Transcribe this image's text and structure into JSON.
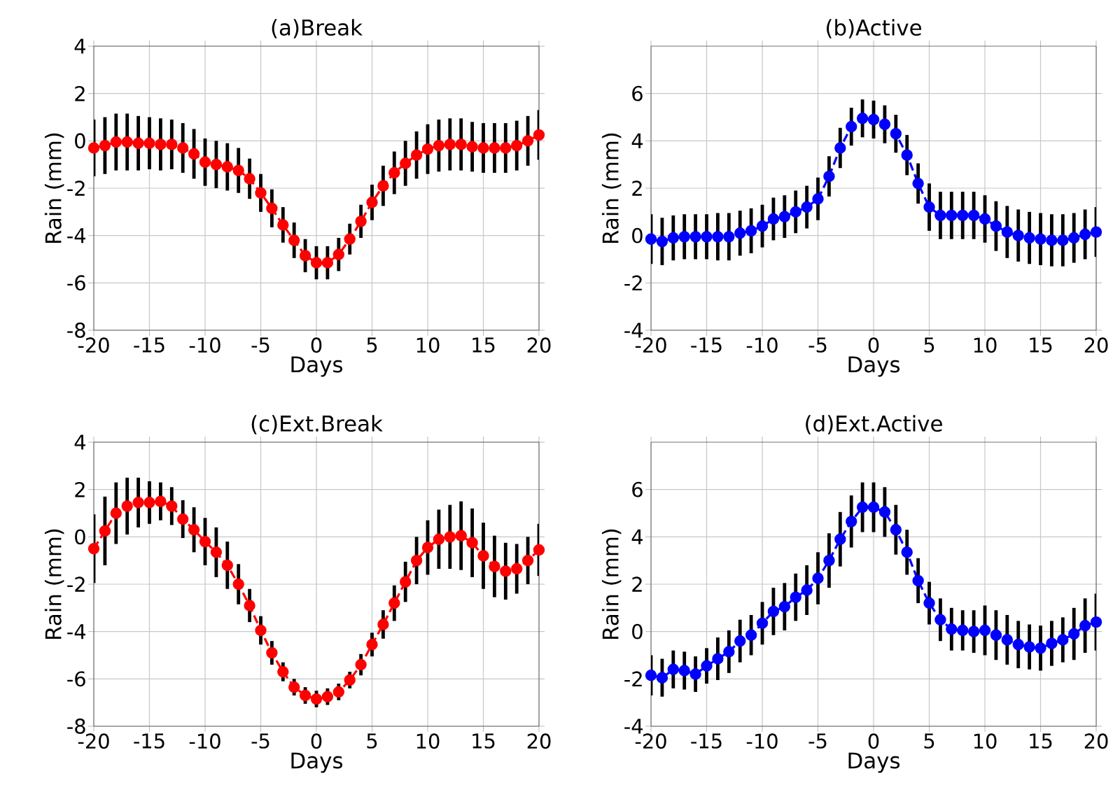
{
  "chart_data": [
    {
      "type": "line",
      "title": "(a)Break",
      "xlabel": "Days",
      "ylabel": "Rain (mm)",
      "grid": true,
      "marker": "circle",
      "line_style": "dashed",
      "x": [
        -20,
        -19,
        -18,
        -17,
        -16,
        -15,
        -14,
        -13,
        -12,
        -11,
        -10,
        -9,
        -8,
        -7,
        -6,
        -5,
        -4,
        -3,
        -2,
        -1,
        0,
        1,
        2,
        3,
        4,
        5,
        6,
        7,
        8,
        9,
        10,
        11,
        12,
        13,
        14,
        15,
        16,
        17,
        18,
        19,
        20
      ],
      "xlim": [
        -20,
        20
      ],
      "ylim": [
        -8,
        4
      ],
      "xticks": [
        -20,
        -15,
        -10,
        -5,
        0,
        5,
        10,
        15,
        20
      ],
      "yticks": [
        -8,
        -6,
        -4,
        -2,
        0,
        2,
        4
      ],
      "series": [
        {
          "color": "#ff0000",
          "values": [
            -0.3,
            -0.2,
            -0.05,
            -0.05,
            -0.1,
            -0.1,
            -0.15,
            -0.15,
            -0.3,
            -0.55,
            -0.9,
            -1.0,
            -1.1,
            -1.25,
            -1.6,
            -2.2,
            -2.85,
            -3.55,
            -4.2,
            -4.85,
            -5.15,
            -5.15,
            -4.8,
            -4.15,
            -3.4,
            -2.6,
            -1.9,
            -1.35,
            -0.95,
            -0.6,
            -0.35,
            -0.2,
            -0.15,
            -0.15,
            -0.25,
            -0.3,
            -0.3,
            -0.3,
            -0.2,
            0.0,
            0.25
          ],
          "errors": [
            1.2,
            1.2,
            1.2,
            1.2,
            1.15,
            1.1,
            1.1,
            1.05,
            1.05,
            1.05,
            1.0,
            1.0,
            1.0,
            0.95,
            0.85,
            0.8,
            0.8,
            0.75,
            0.75,
            0.7,
            0.7,
            0.7,
            0.7,
            0.65,
            0.7,
            0.75,
            0.85,
            0.9,
            0.95,
            1.0,
            1.05,
            1.1,
            1.1,
            1.1,
            1.05,
            1.05,
            1.05,
            1.05,
            1.05,
            1.05,
            1.05
          ]
        }
      ]
    },
    {
      "type": "line",
      "title": "(b)Active",
      "xlabel": "Days",
      "ylabel": "Rain (mm)",
      "grid": true,
      "marker": "circle",
      "line_style": "dashed",
      "x": [
        -20,
        -19,
        -18,
        -17,
        -16,
        -15,
        -14,
        -13,
        -12,
        -11,
        -10,
        -9,
        -8,
        -7,
        -6,
        -5,
        -4,
        -3,
        -2,
        -1,
        0,
        1,
        2,
        3,
        4,
        5,
        6,
        7,
        8,
        9,
        10,
        11,
        12,
        13,
        14,
        15,
        16,
        17,
        18,
        19,
        20
      ],
      "xlim": [
        -20,
        20
      ],
      "ylim": [
        -4,
        8
      ],
      "xticks": [
        -20,
        -15,
        -10,
        -5,
        0,
        5,
        10,
        15,
        20
      ],
      "yticks": [
        -4,
        -2,
        0,
        2,
        4,
        6
      ],
      "series": [
        {
          "color": "#0000ff",
          "values": [
            -0.15,
            -0.25,
            -0.1,
            -0.05,
            -0.05,
            -0.05,
            -0.05,
            -0.05,
            0.1,
            0.2,
            0.4,
            0.7,
            0.8,
            1.0,
            1.2,
            1.55,
            2.5,
            3.7,
            4.6,
            4.95,
            4.9,
            4.7,
            4.3,
            3.4,
            2.2,
            1.2,
            0.85,
            0.85,
            0.85,
            0.85,
            0.7,
            0.4,
            0.15,
            0.0,
            -0.1,
            -0.15,
            -0.2,
            -0.2,
            -0.1,
            0.05,
            0.15
          ],
          "errors": [
            1.05,
            1.0,
            0.95,
            0.95,
            0.95,
            0.95,
            1.0,
            1.0,
            0.95,
            0.95,
            0.9,
            0.9,
            0.9,
            0.9,
            0.9,
            0.9,
            0.85,
            0.85,
            0.8,
            0.8,
            0.8,
            0.8,
            0.8,
            0.85,
            0.85,
            1.0,
            1.0,
            1.0,
            1.0,
            1.0,
            1.0,
            1.05,
            1.1,
            1.1,
            1.1,
            1.1,
            1.1,
            1.1,
            1.05,
            1.05,
            1.05
          ]
        }
      ]
    },
    {
      "type": "line",
      "title": "(c)Ext.Break",
      "xlabel": "Days",
      "ylabel": "Rain (mm)",
      "grid": true,
      "marker": "circle",
      "line_style": "dashed",
      "x": [
        -20,
        -19,
        -18,
        -17,
        -16,
        -15,
        -14,
        -13,
        -12,
        -11,
        -10,
        -9,
        -8,
        -7,
        -6,
        -5,
        -4,
        -3,
        -2,
        -1,
        0,
        1,
        2,
        3,
        4,
        5,
        6,
        7,
        8,
        9,
        10,
        11,
        12,
        13,
        14,
        15,
        16,
        17,
        18,
        19,
        20
      ],
      "xlim": [
        -20,
        20
      ],
      "ylim": [
        -8,
        4
      ],
      "xticks": [
        -20,
        -15,
        -10,
        -5,
        0,
        5,
        10,
        15,
        20
      ],
      "yticks": [
        -8,
        -6,
        -4,
        -2,
        0,
        2,
        4
      ],
      "series": [
        {
          "color": "#ff0000",
          "values": [
            -0.5,
            0.25,
            1.0,
            1.3,
            1.45,
            1.45,
            1.5,
            1.3,
            0.75,
            0.3,
            -0.2,
            -0.65,
            -1.2,
            -2.0,
            -2.9,
            -3.95,
            -4.9,
            -5.7,
            -6.35,
            -6.7,
            -6.85,
            -6.75,
            -6.55,
            -6.05,
            -5.4,
            -4.55,
            -3.7,
            -2.8,
            -1.9,
            -1.0,
            -0.45,
            -0.1,
            0.0,
            0.05,
            -0.25,
            -0.8,
            -1.25,
            -1.45,
            -1.35,
            -1.0,
            -0.55
          ],
          "errors": [
            1.45,
            1.45,
            1.3,
            1.2,
            1.05,
            0.9,
            0.8,
            0.8,
            0.8,
            0.95,
            1.0,
            1.05,
            1.0,
            0.85,
            0.7,
            0.6,
            0.5,
            0.4,
            0.35,
            0.35,
            0.35,
            0.35,
            0.35,
            0.35,
            0.45,
            0.5,
            0.6,
            0.75,
            0.85,
            1.0,
            1.15,
            1.25,
            1.35,
            1.45,
            1.45,
            1.4,
            1.3,
            1.2,
            1.05,
            1.0,
            1.1
          ]
        }
      ]
    },
    {
      "type": "line",
      "title": "(d)Ext.Active",
      "xlabel": "Days",
      "ylabel": "Rain (mm)",
      "grid": true,
      "marker": "circle",
      "line_style": "dashed",
      "x": [
        -20,
        -19,
        -18,
        -17,
        -16,
        -15,
        -14,
        -13,
        -12,
        -11,
        -10,
        -9,
        -8,
        -7,
        -6,
        -5,
        -4,
        -3,
        -2,
        -1,
        0,
        1,
        2,
        3,
        4,
        5,
        6,
        7,
        8,
        9,
        10,
        11,
        12,
        13,
        14,
        15,
        16,
        17,
        18,
        19,
        20
      ],
      "xlim": [
        -20,
        20
      ],
      "ylim": [
        -4,
        8
      ],
      "xticks": [
        -20,
        -15,
        -10,
        -5,
        0,
        5,
        10,
        15,
        20
      ],
      "yticks": [
        -4,
        -2,
        0,
        2,
        4,
        6
      ],
      "series": [
        {
          "color": "#0000ff",
          "values": [
            -1.85,
            -1.95,
            -1.6,
            -1.65,
            -1.8,
            -1.45,
            -1.15,
            -0.85,
            -0.4,
            -0.15,
            0.35,
            0.85,
            1.05,
            1.45,
            1.75,
            2.25,
            3.0,
            3.9,
            4.65,
            5.25,
            5.25,
            5.05,
            4.3,
            3.35,
            2.15,
            1.2,
            0.5,
            0.1,
            0.05,
            0.0,
            0.05,
            -0.15,
            -0.35,
            -0.55,
            -0.65,
            -0.7,
            -0.5,
            -0.35,
            -0.1,
            0.25,
            0.4
          ],
          "errors": [
            0.85,
            0.8,
            0.8,
            0.8,
            0.75,
            0.75,
            0.9,
            0.9,
            0.9,
            0.85,
            0.9,
            1.0,
            1.0,
            1.0,
            1.05,
            1.1,
            1.15,
            1.15,
            1.1,
            1.05,
            1.05,
            1.05,
            1.05,
            0.95,
            0.95,
            0.9,
            0.9,
            0.9,
            0.85,
            0.9,
            1.05,
            1.05,
            1.05,
            1.0,
            0.95,
            0.95,
            0.95,
            0.95,
            1.1,
            1.15,
            1.2
          ]
        }
      ]
    }
  ]
}
